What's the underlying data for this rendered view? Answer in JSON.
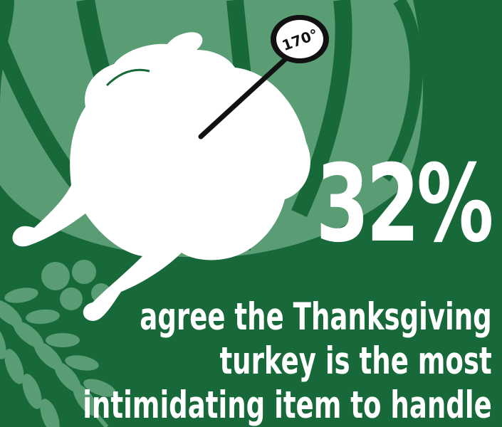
{
  "stat": {
    "value": "32%",
    "caption_lines": [
      "agree the Thanksgiving",
      "turkey is the most",
      "intimidating item to handle"
    ]
  },
  "thermometer": {
    "reading": "170°"
  },
  "colors": {
    "background": "#17693a",
    "motif": "#5a9d75",
    "foreground": "#ffffff",
    "ink": "#111111"
  },
  "icons": [
    "pumpkin-icon",
    "wheat-icon",
    "turkey-icon",
    "meat-thermometer-icon",
    "berries-icon"
  ]
}
